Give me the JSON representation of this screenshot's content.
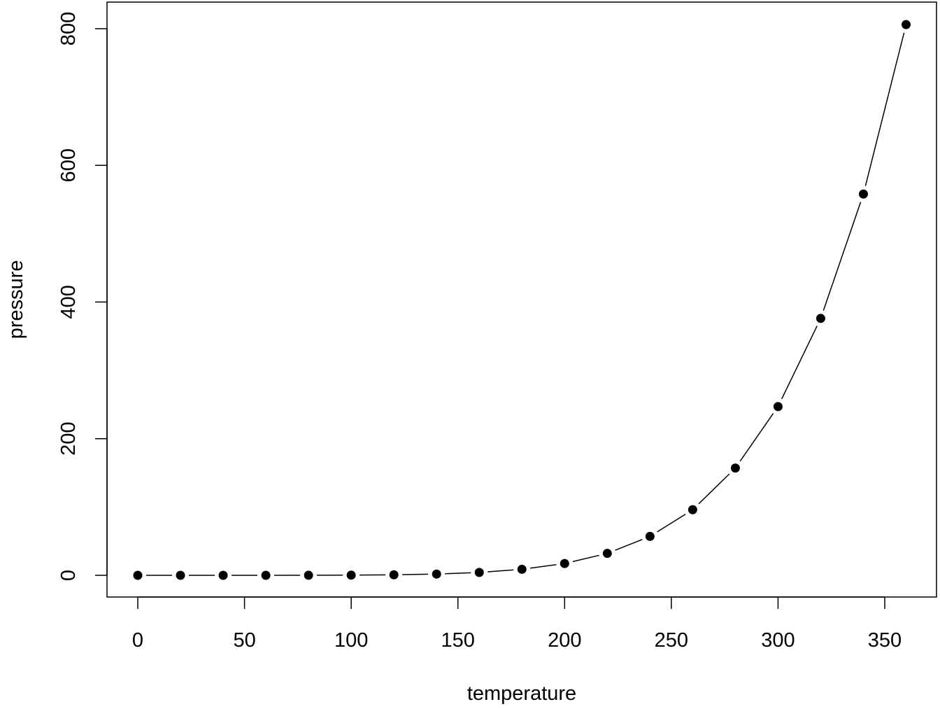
{
  "chart_data": {
    "type": "line",
    "plot_style": "both points and lines",
    "title": "",
    "xlabel": "temperature",
    "ylabel": "pressure",
    "xlim": [
      0,
      360
    ],
    "ylim": [
      0,
      806
    ],
    "x_ticks": [
      0,
      50,
      100,
      150,
      200,
      250,
      300,
      350
    ],
    "y_ticks": [
      0,
      200,
      400,
      600,
      800
    ],
    "grid": false,
    "colors": {
      "points": "#000000",
      "line": "#000000"
    },
    "x": [
      0,
      20,
      40,
      60,
      80,
      100,
      120,
      140,
      160,
      180,
      200,
      220,
      240,
      260,
      280,
      300,
      320,
      340,
      360
    ],
    "y": [
      0.0002,
      0.0012,
      0.006,
      0.03,
      0.09,
      0.27,
      0.75,
      1.85,
      4.2,
      8.8,
      17.3,
      32.1,
      57,
      96,
      157,
      247,
      376,
      558,
      806
    ]
  }
}
